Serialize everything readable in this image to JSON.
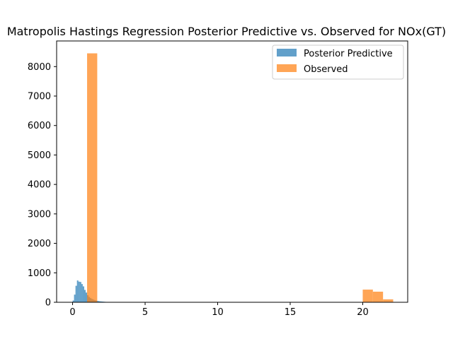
{
  "chart_data": {
    "type": "bar",
    "title": "Matropolis Hastings Regression Posterior Predictive vs. Observed for NOx(GT)",
    "xlabel": "",
    "ylabel": "",
    "xlim": [
      -1.1,
      23.1
    ],
    "ylim": [
      0,
      8870
    ],
    "xticks": [
      0,
      5,
      10,
      15,
      20
    ],
    "yticks": [
      0,
      1000,
      2000,
      3000,
      4000,
      5000,
      6000,
      7000,
      8000
    ],
    "grid": false,
    "legend_position": "top-right",
    "series": [
      {
        "name": "Posterior Predictive",
        "color": "#1f77b4",
        "opacity": 0.7,
        "bins": [
          {
            "x0": 0.0,
            "x1": 0.1,
            "count": 60
          },
          {
            "x0": 0.1,
            "x1": 0.2,
            "count": 260
          },
          {
            "x0": 0.2,
            "x1": 0.3,
            "count": 560
          },
          {
            "x0": 0.3,
            "x1": 0.4,
            "count": 740
          },
          {
            "x0": 0.4,
            "x1": 0.5,
            "count": 700
          },
          {
            "x0": 0.5,
            "x1": 0.6,
            "count": 690
          },
          {
            "x0": 0.6,
            "x1": 0.7,
            "count": 620
          },
          {
            "x0": 0.7,
            "x1": 0.8,
            "count": 540
          },
          {
            "x0": 0.8,
            "x1": 0.9,
            "count": 420
          },
          {
            "x0": 0.9,
            "x1": 1.0,
            "count": 330
          },
          {
            "x0": 1.0,
            "x1": 1.1,
            "count": 240
          },
          {
            "x0": 1.1,
            "x1": 1.2,
            "count": 180
          },
          {
            "x0": 1.2,
            "x1": 1.3,
            "count": 140
          },
          {
            "x0": 1.3,
            "x1": 1.4,
            "count": 110
          },
          {
            "x0": 1.4,
            "x1": 1.5,
            "count": 90
          },
          {
            "x0": 1.5,
            "x1": 1.6,
            "count": 70
          },
          {
            "x0": 1.6,
            "x1": 1.7,
            "count": 55
          },
          {
            "x0": 1.7,
            "x1": 1.8,
            "count": 45
          },
          {
            "x0": 1.8,
            "x1": 1.9,
            "count": 35
          },
          {
            "x0": 1.9,
            "x1": 2.0,
            "count": 30
          },
          {
            "x0": 2.0,
            "x1": 2.1,
            "count": 25
          },
          {
            "x0": 2.1,
            "x1": 2.2,
            "count": 20
          },
          {
            "x0": 2.2,
            "x1": 2.3,
            "count": 15
          },
          {
            "x0": 2.3,
            "x1": 2.4,
            "count": 10
          },
          {
            "x0": 2.4,
            "x1": 2.5,
            "count": 6
          }
        ]
      },
      {
        "name": "Observed",
        "color": "#ff7f0e",
        "opacity": 0.7,
        "bins": [
          {
            "x0": 1.0,
            "x1": 1.7,
            "count": 8450
          },
          {
            "x0": 20.0,
            "x1": 20.7,
            "count": 430
          },
          {
            "x0": 20.7,
            "x1": 21.4,
            "count": 360
          },
          {
            "x0": 21.4,
            "x1": 22.1,
            "count": 100
          }
        ]
      }
    ]
  }
}
